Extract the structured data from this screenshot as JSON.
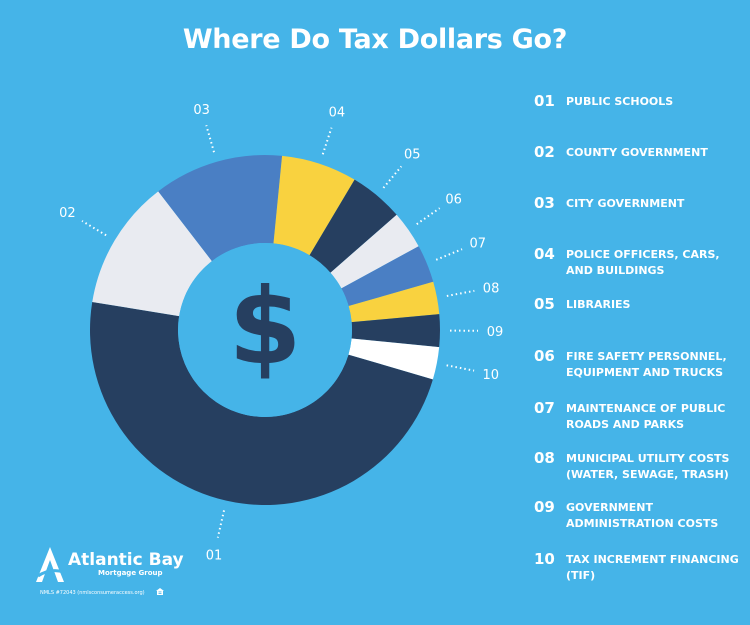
{
  "title": "Where Do Tax Dollars Go?",
  "center_symbol": "$",
  "colors": {
    "background": "#45b4e8",
    "navy": "#263f60",
    "blue": "#4a7fc4",
    "yellow": "#f9d23f",
    "light": "#e9ebf1",
    "white": "#ffffff"
  },
  "chart_data": {
    "type": "pie",
    "style": "donut",
    "title": "Where Do Tax Dollars Go?",
    "categories": [
      "01",
      "02",
      "03",
      "04",
      "05",
      "06",
      "07",
      "08",
      "09",
      "10"
    ],
    "values": [
      48,
      12,
      12,
      7,
      5,
      3.5,
      3.5,
      3,
      3,
      3
    ],
    "slice_colors": [
      "#263f60",
      "#e9ebf1",
      "#4a7fc4",
      "#f9d23f",
      "#263f60",
      "#e9ebf1",
      "#4a7fc4",
      "#f9d23f",
      "#263f60",
      "#ffffff"
    ],
    "legend": [
      {
        "num": "01",
        "label": "PUBLIC SCHOOLS"
      },
      {
        "num": "02",
        "label": "COUNTY GOVERNMENT"
      },
      {
        "num": "03",
        "label": "CITY GOVERNMENT"
      },
      {
        "num": "04",
        "label": "POLICE OFFICERS, CARS, AND BUILDINGS"
      },
      {
        "num": "05",
        "label": "LIBRARIES"
      },
      {
        "num": "06",
        "label": "FIRE SAFETY PERSONNEL, EQUIPMENT AND TRUCKS"
      },
      {
        "num": "07",
        "label": "MAINTENANCE OF PUBLIC ROADS AND PARKS"
      },
      {
        "num": "08",
        "label": "MUNICIPAL UTILITY COSTS (WATER, SEWAGE, TRASH)"
      },
      {
        "num": "09",
        "label": "GOVERNMENT ADMINISTRATION COSTS"
      },
      {
        "num": "10",
        "label": "TAX INCREMENT FINANCING (TIF)"
      }
    ],
    "legend_placement": "right"
  },
  "logo": {
    "name": "Atlantic Bay",
    "subtitle": "Mortgage Group",
    "nmls": "NMLS #72043 (nmlsconsumeraccess.org)"
  }
}
